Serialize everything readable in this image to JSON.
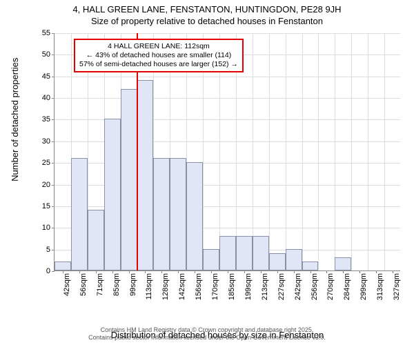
{
  "title": {
    "line1": "4, HALL GREEN LANE, FENSTANTON, HUNTINGDON, PE28 9JH",
    "line2": "Size of property relative to detached houses in Fenstanton"
  },
  "chart": {
    "type": "histogram",
    "ylabel": "Number of detached properties",
    "xlabel": "Distribution of detached houses by size in Fenstanton",
    "ylim": [
      0,
      55
    ],
    "ytick_step": 5,
    "xtick_labels": [
      "42sqm",
      "56sqm",
      "71sqm",
      "85sqm",
      "99sqm",
      "113sqm",
      "128sqm",
      "142sqm",
      "156sqm",
      "170sqm",
      "185sqm",
      "199sqm",
      "213sqm",
      "227sqm",
      "242sqm",
      "256sqm",
      "270sqm",
      "284sqm",
      "299sqm",
      "313sqm",
      "327sqm"
    ],
    "values": [
      2,
      26,
      14,
      35,
      42,
      44,
      26,
      26,
      25,
      5,
      8,
      8,
      8,
      4,
      5,
      2,
      0,
      3,
      0,
      0,
      0
    ],
    "bar_fill": "#e0e6f6",
    "bar_border": "#888fa8",
    "grid_color": "#dcdcdc",
    "axis_color": "#878787",
    "background_color": "#ffffff",
    "reference": {
      "bin_index": 5,
      "color": "#e60000",
      "box_lines": [
        "4 HALL GREEN LANE: 112sqm",
        "← 43% of detached houses are smaller (114)",
        "57% of semi-detached houses are larger (152) →"
      ],
      "box_border": "#e60000"
    }
  },
  "credit": {
    "line1": "Contains HM Land Registry data © Crown copyright and database right 2025.",
    "line2": "Contains public sector information licensed under the Open Government Licence v3.0."
  }
}
